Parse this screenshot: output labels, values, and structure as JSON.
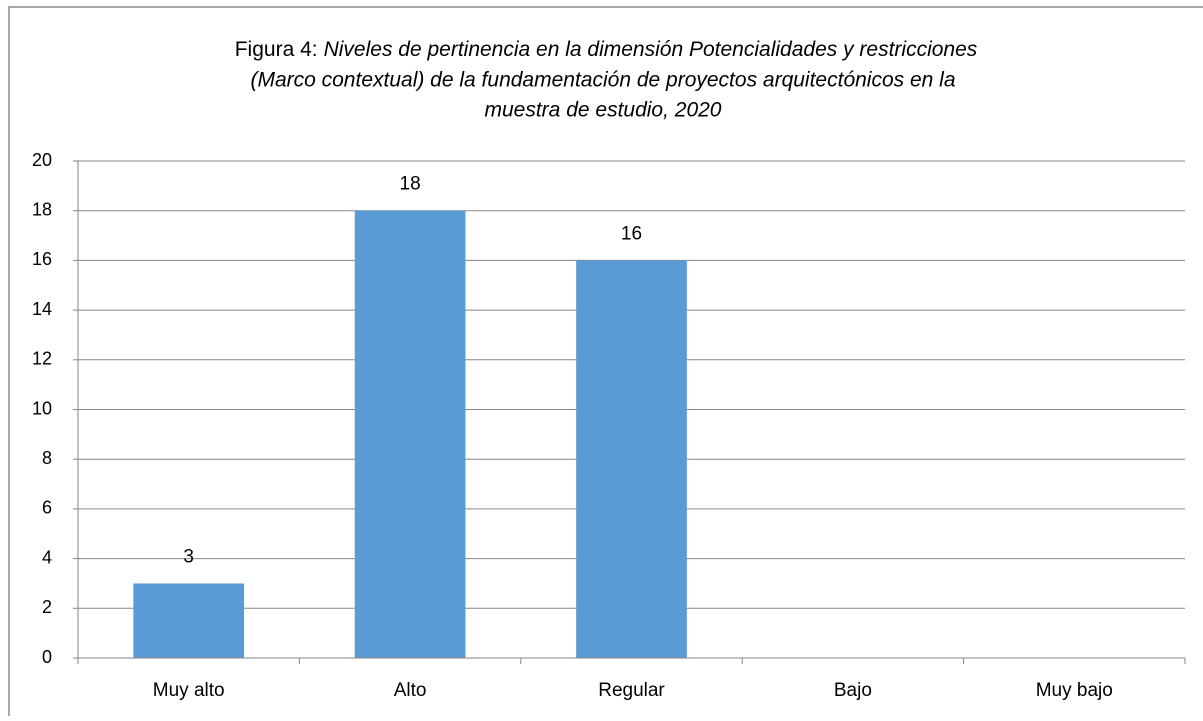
{
  "chart_data": {
    "type": "bar",
    "title_prefix": "Figura 4:",
    "title_lines": [
      "Niveles de pertinencia en la dimensión Potencialidades y restricciones",
      "(Marco contextual) de la fundamentación de proyectos arquitectónicos en la",
      "muestra de estudio, 2020"
    ],
    "categories": [
      "Muy alto",
      "Alto",
      "Regular",
      "Bajo",
      "Muy bajo"
    ],
    "values": [
      3,
      18,
      16,
      null,
      null
    ],
    "color": "#5b9bd5",
    "ylim": [
      0,
      20
    ],
    "yticks": [
      0,
      2,
      4,
      6,
      8,
      10,
      12,
      14,
      16,
      18,
      20
    ],
    "grid": true
  }
}
